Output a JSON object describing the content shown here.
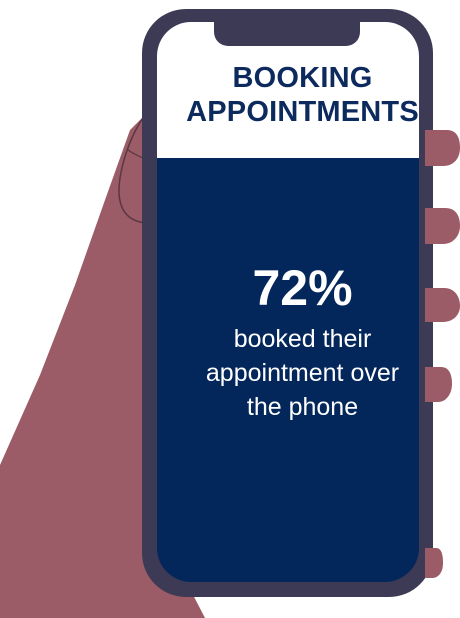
{
  "infographic": {
    "heading_line1": "BOOKING",
    "heading_line2": "APPOINTMENTS",
    "stat_value": "72%",
    "stat_caption": "booked their appointment over the phone"
  },
  "colors": {
    "skin": "#9b5c68",
    "skin_outline": "#5a3840",
    "phone_frame": "#3d3a55",
    "screen_header": "#ffffff",
    "screen_body": "#04275b",
    "heading_text": "#0c2a5e",
    "body_text": "#ffffff"
  }
}
